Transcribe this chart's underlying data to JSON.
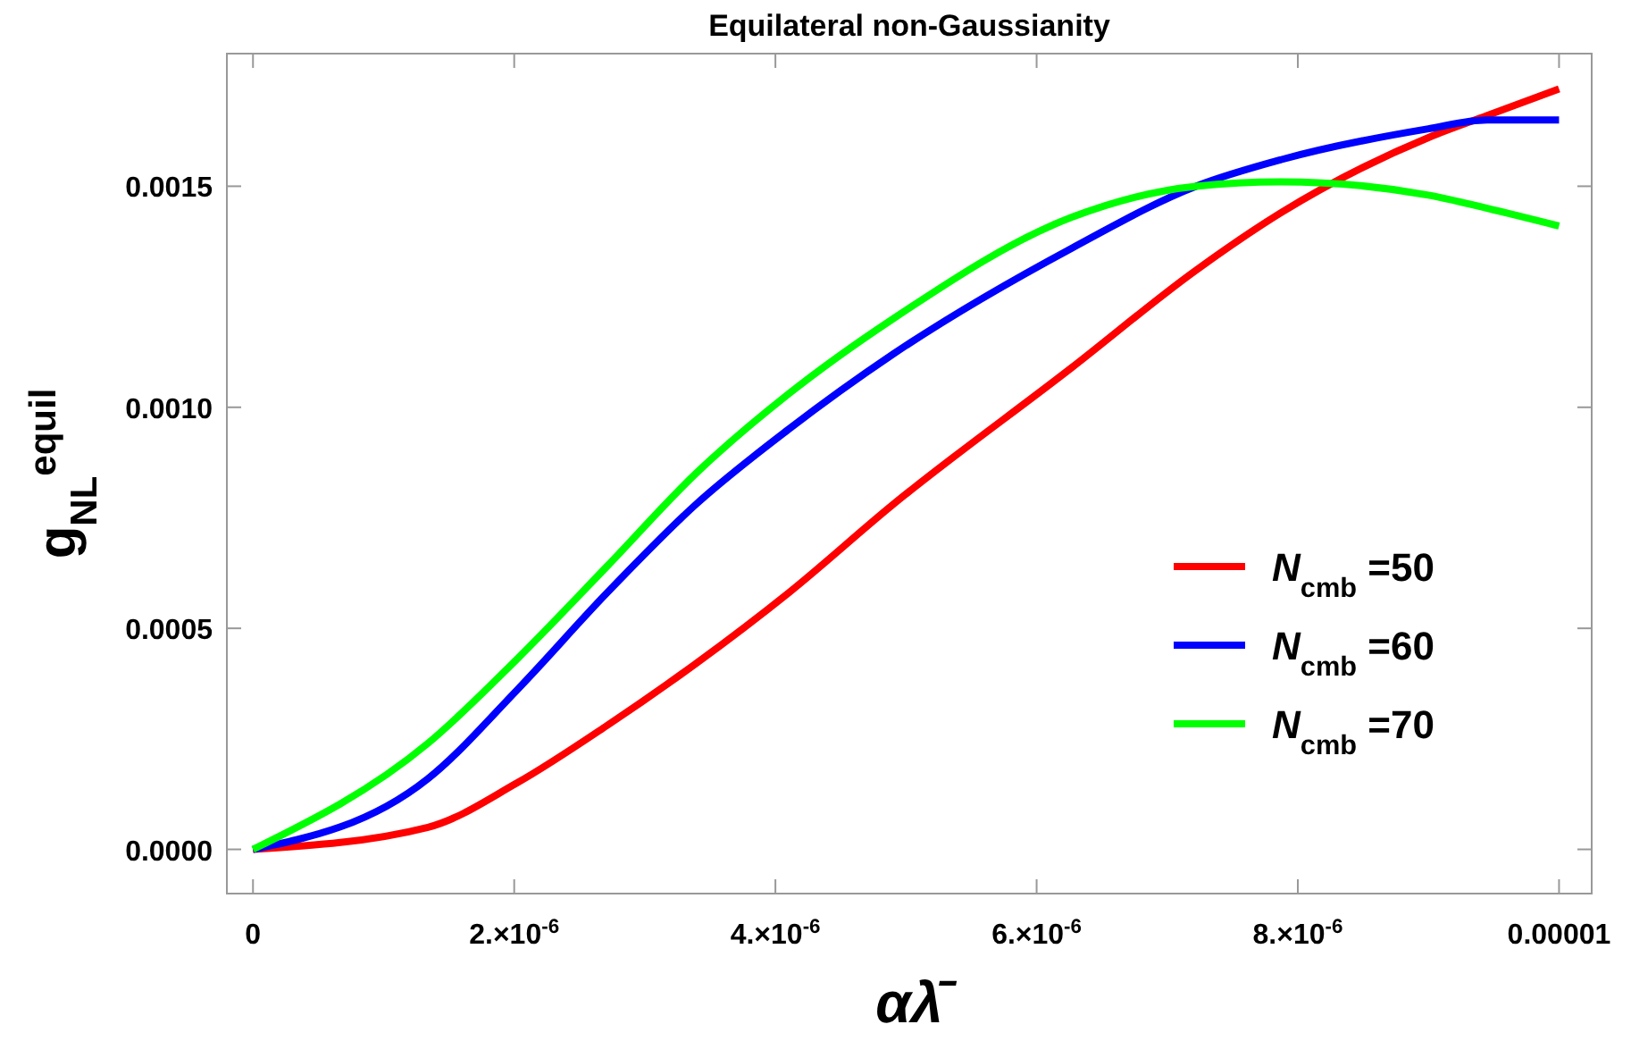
{
  "chart_data": {
    "type": "line",
    "title": "Equilateral non-Gaussianity",
    "xlabel": "αλ̄",
    "ylabel": "g$_{NL}$$^{equil}$",
    "x": [
      0,
      1.34e-06,
      2.02e-06,
      2.71e-06,
      3.39e-06,
      4.1e-06,
      4.9e-06,
      6.27e-06,
      7.22e-06,
      7.87e-06,
      9e-06,
      9.45e-06,
      1e-05
    ],
    "series": [
      {
        "name": "N$_{cmb}$ =50",
        "color": "#ff0000",
        "values": [
          0,
          5e-05,
          0.00015,
          0.00028,
          0.00042,
          0.00058,
          0.00078,
          0.00109,
          0.00131,
          0.00144,
          0.00161,
          0.00166,
          0.00172
        ]
      },
      {
        "name": "N$_{cmb}$ =60",
        "color": "#0000ff",
        "values": [
          0,
          0.00016,
          0.00036,
          0.00058,
          0.00078,
          0.00095,
          0.00112,
          0.00136,
          0.0015,
          0.00156,
          0.00163,
          0.00165,
          0.00165
        ]
      },
      {
        "name": "N$_{cmb}$ =70",
        "color": "#00ff00",
        "values": [
          0,
          0.00024,
          0.00043,
          0.00064,
          0.00085,
          0.00103,
          0.0012,
          0.00143,
          0.0015,
          0.00151,
          0.00148,
          0.00145,
          0.00141
        ]
      }
    ],
    "xlim": [
      -2e-07,
      1.025e-05
    ],
    "ylim": [
      -0.0001,
      0.0018
    ],
    "xticks": [
      0,
      {
        "value": 2e-06,
        "label": "2.×10$^{-6}$"
      },
      {
        "value": 4e-06,
        "label": "4.×10$^{-6}$"
      },
      {
        "value": 6e-06,
        "label": "6.×10$^{-6}$"
      },
      {
        "value": 8e-06,
        "label": "8.×10$^{-6}$"
      },
      {
        "value": 1e-05,
        "label": "0.00001"
      }
    ],
    "yticks": [
      {
        "value": 0,
        "label": "0.0000"
      },
      {
        "value": 0.0005,
        "label": "0.0005"
      },
      {
        "value": 0.001,
        "label": "0.0010"
      },
      {
        "value": 0.0015,
        "label": "0.0015"
      }
    ],
    "legend": "right",
    "grid": false,
    "line_style": "solid"
  }
}
